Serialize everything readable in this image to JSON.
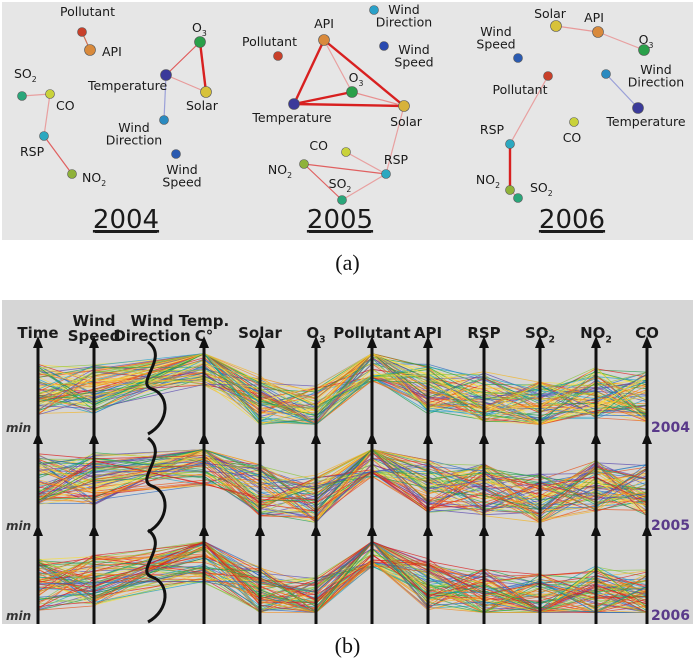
{
  "panel_a": {
    "caption": "(a)",
    "years": [
      {
        "label": "2004",
        "nodes": [
          {
            "id": "Pollutant",
            "label": "Pollutant",
            "color": "#c8402a"
          },
          {
            "id": "API",
            "label": "API",
            "color": "#d98a3c"
          },
          {
            "id": "O3",
            "label": "O",
            "sub": "3",
            "color": "#2aa04a"
          },
          {
            "id": "Temperature",
            "label": "Temperature",
            "color": "#3a3a9a"
          },
          {
            "id": "Solar",
            "label": "Solar",
            "color": "#d7c23a"
          },
          {
            "id": "SO2",
            "label": "SO",
            "sub": "2",
            "color": "#2aa67a"
          },
          {
            "id": "CO",
            "label": "CO",
            "color": "#c9d23a"
          },
          {
            "id": "RSP",
            "label": "RSP",
            "color": "#2ca8c0"
          },
          {
            "id": "NO2",
            "label": "NO",
            "sub": "2",
            "color": "#8fb23a"
          },
          {
            "id": "WindDirection",
            "label": "Wind|Direction",
            "color": "#2a8ac0"
          },
          {
            "id": "WindSpeed",
            "label": "Wind|Speed",
            "color": "#2a5ab0"
          }
        ],
        "edges": [
          [
            "Pollutant",
            "API",
            "#d07050"
          ],
          [
            "O3",
            "Solar",
            "#d82020"
          ],
          [
            "Temperature",
            "O3",
            "#e05a5a"
          ],
          [
            "Temperature",
            "Solar",
            "#e89a9a"
          ],
          [
            "Temperature",
            "WindDirection",
            "#9aa0d8"
          ],
          [
            "SO2",
            "CO",
            "#e8a0a0"
          ],
          [
            "CO",
            "RSP",
            "#e8a0a0"
          ],
          [
            "RSP",
            "NO2",
            "#e06060"
          ]
        ]
      },
      {
        "label": "2005",
        "nodes": [
          {
            "id": "API",
            "label": "API",
            "color": "#d98a3c"
          },
          {
            "id": "Pollutant",
            "label": "Pollutant",
            "color": "#c8402a"
          },
          {
            "id": "WindDirection",
            "label": "Wind|Direction",
            "color": "#2aa0c8"
          },
          {
            "id": "WindSpeed",
            "label": "Wind|Speed",
            "color": "#2a4ab0"
          },
          {
            "id": "O3",
            "label": "O",
            "sub": "3",
            "color": "#2aa04a"
          },
          {
            "id": "Temperature",
            "label": "Temperature",
            "color": "#3a3a9a"
          },
          {
            "id": "Solar",
            "label": "Solar",
            "color": "#d7b23a"
          },
          {
            "id": "CO",
            "label": "CO",
            "color": "#c9d23a"
          },
          {
            "id": "RSP",
            "label": "RSP",
            "color": "#2ca8c0"
          },
          {
            "id": "NO2",
            "label": "NO",
            "sub": "2",
            "color": "#8fb23a"
          },
          {
            "id": "SO2",
            "label": "SO",
            "sub": "2",
            "color": "#2aa67a"
          }
        ],
        "edges": [
          [
            "API",
            "Temperature",
            "#d82020"
          ],
          [
            "API",
            "Solar",
            "#d82020"
          ],
          [
            "Temperature",
            "Solar",
            "#d82020"
          ],
          [
            "Temperature",
            "O3",
            "#d82020"
          ],
          [
            "O3",
            "Solar",
            "#e89090"
          ],
          [
            "API",
            "O3",
            "#e8a0a0"
          ],
          [
            "Solar",
            "RSP",
            "#e8a0a0"
          ],
          [
            "CO",
            "RSP",
            "#e8a0a0"
          ],
          [
            "NO2",
            "RSP",
            "#e06060"
          ],
          [
            "NO2",
            "SO2",
            "#e06060"
          ],
          [
            "SO2",
            "RSP",
            "#e8a0a0"
          ]
        ]
      },
      {
        "label": "2006",
        "nodes": [
          {
            "id": "Solar",
            "label": "Solar",
            "color": "#d7c23a"
          },
          {
            "id": "API",
            "label": "API",
            "color": "#d98a3c"
          },
          {
            "id": "O3",
            "label": "O",
            "sub": "3",
            "color": "#2aa04a"
          },
          {
            "id": "WindSpeed",
            "label": "Wind|Speed",
            "color": "#2a5ab0"
          },
          {
            "id": "Pollutant",
            "label": "Pollutant",
            "color": "#c8402a"
          },
          {
            "id": "WindDirection",
            "label": "Wind|Direction",
            "color": "#2a8ac0"
          },
          {
            "id": "Temperature",
            "label": "Temperature",
            "color": "#3a3a9a"
          },
          {
            "id": "RSP",
            "label": "RSP",
            "color": "#2ca8c0"
          },
          {
            "id": "CO",
            "label": "CO",
            "color": "#c9d23a"
          },
          {
            "id": "NO2",
            "label": "NO",
            "sub": "2",
            "color": "#8fb23a"
          },
          {
            "id": "SO2",
            "label": "SO",
            "sub": "2",
            "color": "#2aa67a"
          }
        ],
        "edges": [
          [
            "Solar",
            "API",
            "#e89a9a"
          ],
          [
            "API",
            "O3",
            "#e8a0a0"
          ],
          [
            "WindDirection",
            "Temperature",
            "#9aa0d8"
          ],
          [
            "Pollutant",
            "RSP",
            "#e8a0a0"
          ],
          [
            "RSP",
            "NO2",
            "#d82020"
          ],
          [
            "NO2",
            "SO2",
            "#e89a9a"
          ]
        ]
      }
    ]
  },
  "panel_b": {
    "caption": "(b)",
    "axes": [
      {
        "label": "Time"
      },
      {
        "label": "Wind|Speed"
      },
      {
        "label": "Wind|Direction"
      },
      {
        "label": "Temp.|C°"
      },
      {
        "label": "Solar"
      },
      {
        "label": "O",
        "sub": "3"
      },
      {
        "label": "Pollutant"
      },
      {
        "label": "API"
      },
      {
        "label": "RSP"
      },
      {
        "label": "SO",
        "sub": "2"
      },
      {
        "label": "NO",
        "sub": "2"
      },
      {
        "label": "CO"
      }
    ],
    "min_label": "min",
    "rows": [
      {
        "year": "2004"
      },
      {
        "year": "2005"
      },
      {
        "year": "2006"
      }
    ],
    "line_colors": [
      "#d92020",
      "#e8551c",
      "#f08a1a",
      "#f2b426",
      "#f6dc3c",
      "#8cc63e",
      "#22a04a",
      "#1ea0c8",
      "#2a6ac0",
      "#5a4ab0"
    ],
    "year_label_color": "#5a3a8a"
  }
}
